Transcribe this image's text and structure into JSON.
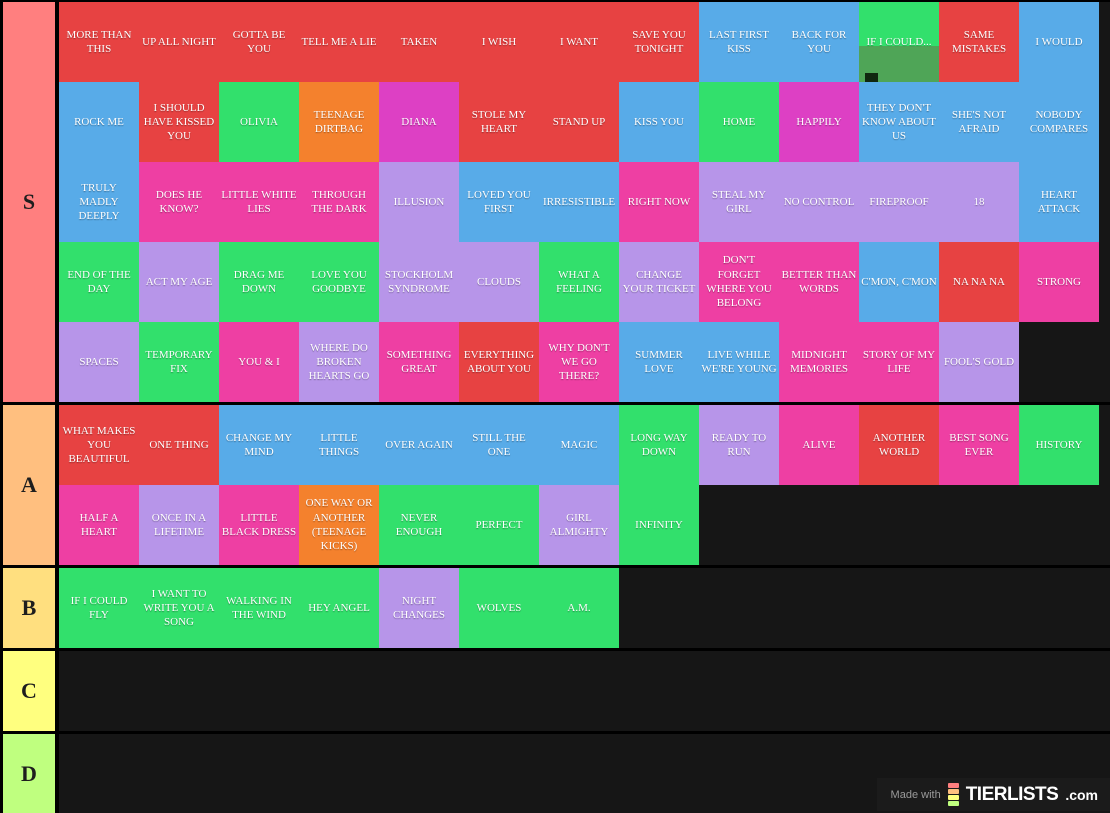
{
  "palette": {
    "red": "#e74242",
    "blue": "#58abe8",
    "green": "#32e06c",
    "orange": "#f4812d",
    "magenta": "#dd40c4",
    "pink": "#ee3fa3",
    "purple": "#b795e9"
  },
  "glitch": {
    "bottom_color": "#4fa557",
    "square_color": "#10270f"
  },
  "tiers": [
    {
      "label": "S",
      "color": "#ff7f7f",
      "tiles": [
        {
          "label": "MORE THAN THIS",
          "color": "red"
        },
        {
          "label": "UP ALL NIGHT",
          "color": "red"
        },
        {
          "label": "GOTTA BE YOU",
          "color": "red"
        },
        {
          "label": "TELL ME A LIE",
          "color": "red"
        },
        {
          "label": "TAKEN",
          "color": "red"
        },
        {
          "label": "I WISH",
          "color": "red"
        },
        {
          "label": "I WANT",
          "color": "red"
        },
        {
          "label": "SAVE YOU TONIGHT",
          "color": "red"
        },
        {
          "label": "LAST FIRST KISS",
          "color": "blue"
        },
        {
          "label": "BACK FOR YOU",
          "color": "blue"
        },
        {
          "label": "IF I COULD...",
          "color": "green",
          "glitch": true
        },
        {
          "label": "SAME MISTAKES",
          "color": "red"
        },
        {
          "label": "I WOULD",
          "color": "blue"
        },
        {
          "label": "ROCK ME",
          "color": "blue"
        },
        {
          "label": "I SHOULD HAVE KISSED YOU",
          "color": "red"
        },
        {
          "label": "OLIVIA",
          "color": "green"
        },
        {
          "label": "TEENAGE DIRTBAG",
          "color": "orange"
        },
        {
          "label": "DIANA",
          "color": "magenta"
        },
        {
          "label": "STOLE MY HEART",
          "color": "red"
        },
        {
          "label": "STAND UP",
          "color": "red"
        },
        {
          "label": "KISS YOU",
          "color": "blue"
        },
        {
          "label": "HOME",
          "color": "green"
        },
        {
          "label": "HAPPILY",
          "color": "magenta"
        },
        {
          "label": "THEY DON'T KNOW ABOUT US",
          "color": "blue"
        },
        {
          "label": "SHE'S NOT AFRAID",
          "color": "blue"
        },
        {
          "label": "NOBODY COMPARES",
          "color": "blue"
        },
        {
          "label": "TRULY MADLY DEEPLY",
          "color": "blue"
        },
        {
          "label": "DOES HE KNOW?",
          "color": "pink"
        },
        {
          "label": "LITTLE WHITE LIES",
          "color": "pink"
        },
        {
          "label": "THROUGH THE DARK",
          "color": "pink"
        },
        {
          "label": "ILLUSION",
          "color": "purple"
        },
        {
          "label": "LOVED YOU FIRST",
          "color": "blue"
        },
        {
          "label": "IRRESISTIBLE",
          "color": "blue"
        },
        {
          "label": "RIGHT NOW",
          "color": "pink"
        },
        {
          "label": "STEAL MY GIRL",
          "color": "purple"
        },
        {
          "label": "NO CONTROL",
          "color": "purple"
        },
        {
          "label": "FIREPROOF",
          "color": "purple"
        },
        {
          "label": "18",
          "color": "purple"
        },
        {
          "label": "HEART ATTACK",
          "color": "blue"
        },
        {
          "label": "END OF THE DAY",
          "color": "green"
        },
        {
          "label": "ACT MY AGE",
          "color": "purple"
        },
        {
          "label": "DRAG ME DOWN",
          "color": "green"
        },
        {
          "label": "LOVE YOU GOODBYE",
          "color": "green"
        },
        {
          "label": "STOCKHOLM SYNDROME",
          "color": "purple"
        },
        {
          "label": "CLOUDS",
          "color": "purple"
        },
        {
          "label": "WHAT A FEELING",
          "color": "green"
        },
        {
          "label": "CHANGE YOUR TICKET",
          "color": "purple"
        },
        {
          "label": "DON'T FORGET WHERE YOU BELONG",
          "color": "pink"
        },
        {
          "label": "BETTER THAN WORDS",
          "color": "pink"
        },
        {
          "label": "C'MON, C'MON",
          "color": "blue"
        },
        {
          "label": "NA NA NA",
          "color": "red"
        },
        {
          "label": "STRONG",
          "color": "pink"
        },
        {
          "label": "SPACES",
          "color": "purple"
        },
        {
          "label": "TEMPORARY FIX",
          "color": "green"
        },
        {
          "label": "YOU & I",
          "color": "pink"
        },
        {
          "label": "WHERE DO BROKEN HEARTS GO",
          "color": "purple"
        },
        {
          "label": "SOMETHING GREAT",
          "color": "pink"
        },
        {
          "label": "EVERYTHING ABOUT YOU",
          "color": "red"
        },
        {
          "label": "WHY DON'T WE GO THERE?",
          "color": "pink"
        },
        {
          "label": "SUMMER LOVE",
          "color": "blue"
        },
        {
          "label": "LIVE WHILE WE'RE YOUNG",
          "color": "blue"
        },
        {
          "label": "MIDNIGHT MEMORIES",
          "color": "pink"
        },
        {
          "label": "STORY OF MY LIFE",
          "color": "pink"
        },
        {
          "label": "FOOL'S GOLD",
          "color": "purple"
        }
      ]
    },
    {
      "label": "A",
      "color": "#ffbf7f",
      "tiles": [
        {
          "label": "WHAT MAKES YOU BEAUTIFUL",
          "color": "red"
        },
        {
          "label": "ONE THING",
          "color": "red"
        },
        {
          "label": "CHANGE MY MIND",
          "color": "blue"
        },
        {
          "label": "LITTLE THINGS",
          "color": "blue"
        },
        {
          "label": "OVER AGAIN",
          "color": "blue"
        },
        {
          "label": "STILL THE ONE",
          "color": "blue"
        },
        {
          "label": "MAGIC",
          "color": "blue"
        },
        {
          "label": "LONG WAY DOWN",
          "color": "green"
        },
        {
          "label": "READY TO RUN",
          "color": "purple"
        },
        {
          "label": "ALIVE",
          "color": "pink"
        },
        {
          "label": "ANOTHER WORLD",
          "color": "red"
        },
        {
          "label": "BEST SONG EVER",
          "color": "pink"
        },
        {
          "label": "HISTORY",
          "color": "green"
        },
        {
          "label": "HALF A HEART",
          "color": "pink"
        },
        {
          "label": "ONCE IN A LIFETIME",
          "color": "purple"
        },
        {
          "label": "LITTLE BLACK DRESS",
          "color": "pink"
        },
        {
          "label": "ONE WAY OR ANOTHER (TEENAGE KICKS)",
          "color": "orange"
        },
        {
          "label": "NEVER ENOUGH",
          "color": "green"
        },
        {
          "label": "PERFECT",
          "color": "green"
        },
        {
          "label": "GIRL ALMIGHTY",
          "color": "purple"
        },
        {
          "label": "INFINITY",
          "color": "green"
        }
      ]
    },
    {
      "label": "B",
      "color": "#ffdf7f",
      "tiles": [
        {
          "label": "IF I COULD FLY",
          "color": "green"
        },
        {
          "label": "I WANT TO WRITE YOU A SONG",
          "color": "green"
        },
        {
          "label": "WALKING IN THE WIND",
          "color": "green"
        },
        {
          "label": "HEY ANGEL",
          "color": "green"
        },
        {
          "label": "NIGHT CHANGES",
          "color": "purple"
        },
        {
          "label": "WOLVES",
          "color": "green"
        },
        {
          "label": "A.M.",
          "color": "green"
        }
      ]
    },
    {
      "label": "C",
      "color": "#ffff7f",
      "tiles": []
    },
    {
      "label": "D",
      "color": "#bfff7f",
      "tiles": []
    }
  ],
  "watermark": {
    "made_with": "Made with",
    "brand": "TIERLISTS",
    "suffix": ".com",
    "icon_colors": [
      "#ff7f7f",
      "#ffbf7f",
      "#ffff7f",
      "#bfff7f"
    ]
  }
}
